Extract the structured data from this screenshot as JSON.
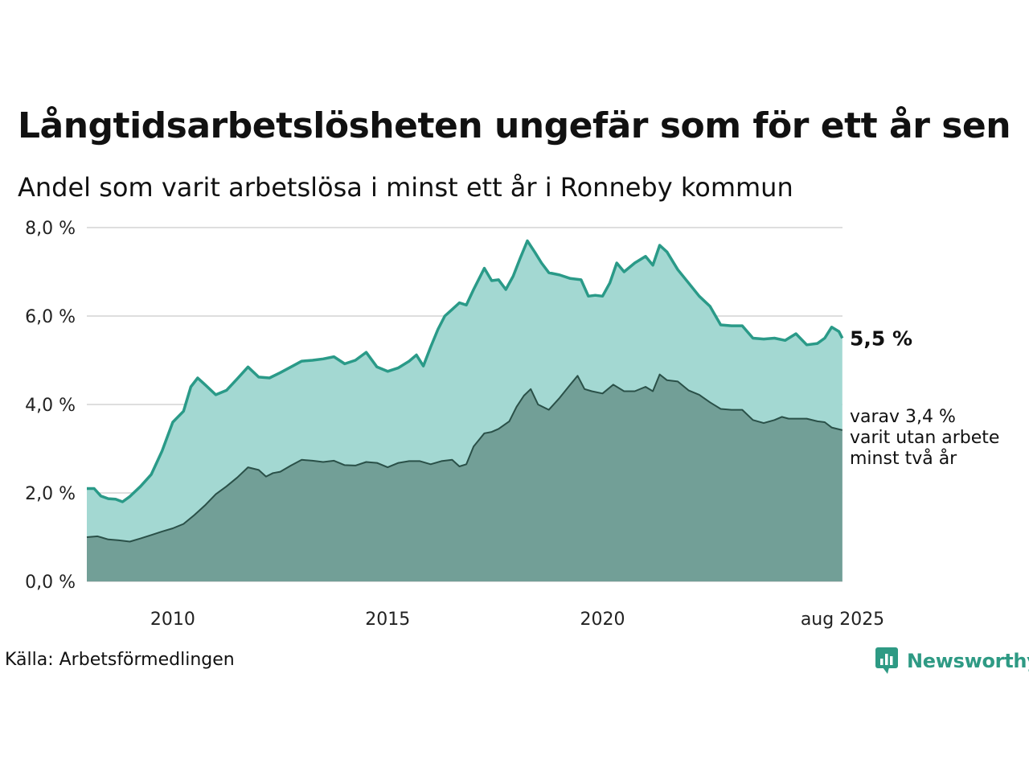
{
  "title": "Långtidsarbetslösheten ungefär som för ett år sen",
  "subtitle": "Andel som varit arbetslösa i minst ett år i Ronneby kommun",
  "source": "Källa: Arbetsförmedlingen",
  "brand": {
    "name": "Newsworthy",
    "color": "#2e9a84",
    "icon": "bar-chart-bubble-icon"
  },
  "chart_data": {
    "type": "area",
    "ylim": [
      0,
      8
    ],
    "y_ticks": [
      0,
      2,
      4,
      6,
      8
    ],
    "y_tick_labels": [
      "0,0 %",
      "2,0 %",
      "4,0 %",
      "6,0 %",
      "8,0 %"
    ],
    "x_range": [
      2008.0,
      2025.583
    ],
    "x_ticks": [
      2010,
      2015,
      2020,
      2025.583
    ],
    "x_tick_labels": [
      "2010",
      "2015",
      "2020",
      "aug 2025"
    ],
    "grid": true,
    "end_labels": {
      "total": "5,5 %",
      "subset": [
        "varav 3,4 %",
        "varit utan arbete",
        "minst två år"
      ]
    },
    "series": [
      {
        "key": "total",
        "color_line": "#2a9a88",
        "color_fill": "#a3d8d2",
        "points": [
          [
            2008.0,
            2.1
          ],
          [
            2008.17,
            2.1
          ],
          [
            2008.33,
            1.93
          ],
          [
            2008.5,
            1.87
          ],
          [
            2008.67,
            1.86
          ],
          [
            2008.83,
            1.8
          ],
          [
            2009.0,
            1.92
          ],
          [
            2009.25,
            2.15
          ],
          [
            2009.5,
            2.42
          ],
          [
            2009.75,
            2.95
          ],
          [
            2010.0,
            3.6
          ],
          [
            2010.25,
            3.85
          ],
          [
            2010.42,
            4.4
          ],
          [
            2010.58,
            4.6
          ],
          [
            2010.75,
            4.45
          ],
          [
            2011.0,
            4.22
          ],
          [
            2011.25,
            4.32
          ],
          [
            2011.5,
            4.58
          ],
          [
            2011.75,
            4.85
          ],
          [
            2012.0,
            4.62
          ],
          [
            2012.25,
            4.6
          ],
          [
            2012.5,
            4.72
          ],
          [
            2012.75,
            4.85
          ],
          [
            2013.0,
            4.98
          ],
          [
            2013.25,
            5.0
          ],
          [
            2013.5,
            5.03
          ],
          [
            2013.75,
            5.08
          ],
          [
            2014.0,
            4.92
          ],
          [
            2014.25,
            5.0
          ],
          [
            2014.5,
            5.18
          ],
          [
            2014.75,
            4.85
          ],
          [
            2015.0,
            4.75
          ],
          [
            2015.25,
            4.83
          ],
          [
            2015.5,
            4.98
          ],
          [
            2015.67,
            5.12
          ],
          [
            2015.83,
            4.87
          ],
          [
            2016.0,
            5.3
          ],
          [
            2016.17,
            5.7
          ],
          [
            2016.33,
            6.0
          ],
          [
            2016.5,
            6.15
          ],
          [
            2016.67,
            6.3
          ],
          [
            2016.83,
            6.25
          ],
          [
            2017.0,
            6.6
          ],
          [
            2017.25,
            7.08
          ],
          [
            2017.42,
            6.8
          ],
          [
            2017.58,
            6.82
          ],
          [
            2017.75,
            6.6
          ],
          [
            2017.92,
            6.9
          ],
          [
            2018.08,
            7.3
          ],
          [
            2018.25,
            7.7
          ],
          [
            2018.42,
            7.45
          ],
          [
            2018.58,
            7.2
          ],
          [
            2018.75,
            6.98
          ],
          [
            2019.0,
            6.93
          ],
          [
            2019.25,
            6.85
          ],
          [
            2019.5,
            6.82
          ],
          [
            2019.67,
            6.45
          ],
          [
            2019.83,
            6.47
          ],
          [
            2020.0,
            6.45
          ],
          [
            2020.17,
            6.75
          ],
          [
            2020.33,
            7.2
          ],
          [
            2020.5,
            7.0
          ],
          [
            2020.75,
            7.2
          ],
          [
            2021.0,
            7.35
          ],
          [
            2021.17,
            7.15
          ],
          [
            2021.33,
            7.6
          ],
          [
            2021.5,
            7.45
          ],
          [
            2021.75,
            7.05
          ],
          [
            2022.0,
            6.75
          ],
          [
            2022.25,
            6.45
          ],
          [
            2022.5,
            6.22
          ],
          [
            2022.75,
            5.8
          ],
          [
            2023.0,
            5.78
          ],
          [
            2023.25,
            5.78
          ],
          [
            2023.5,
            5.5
          ],
          [
            2023.75,
            5.48
          ],
          [
            2024.0,
            5.5
          ],
          [
            2024.25,
            5.45
          ],
          [
            2024.5,
            5.6
          ],
          [
            2024.75,
            5.35
          ],
          [
            2025.0,
            5.38
          ],
          [
            2025.17,
            5.5
          ],
          [
            2025.33,
            5.75
          ],
          [
            2025.5,
            5.65
          ],
          [
            2025.58,
            5.5
          ]
        ]
      },
      {
        "key": "subset",
        "color_line": "#2a5048",
        "color_fill": "#729f97",
        "points": [
          [
            2008.0,
            1.0
          ],
          [
            2008.25,
            1.02
          ],
          [
            2008.5,
            0.95
          ],
          [
            2008.75,
            0.93
          ],
          [
            2009.0,
            0.9
          ],
          [
            2009.25,
            0.97
          ],
          [
            2009.5,
            1.05
          ],
          [
            2009.75,
            1.13
          ],
          [
            2010.0,
            1.2
          ],
          [
            2010.25,
            1.3
          ],
          [
            2010.5,
            1.5
          ],
          [
            2010.75,
            1.72
          ],
          [
            2011.0,
            1.97
          ],
          [
            2011.25,
            2.15
          ],
          [
            2011.5,
            2.35
          ],
          [
            2011.75,
            2.58
          ],
          [
            2012.0,
            2.52
          ],
          [
            2012.17,
            2.37
          ],
          [
            2012.33,
            2.45
          ],
          [
            2012.5,
            2.48
          ],
          [
            2012.75,
            2.62
          ],
          [
            2013.0,
            2.75
          ],
          [
            2013.25,
            2.73
          ],
          [
            2013.5,
            2.7
          ],
          [
            2013.75,
            2.73
          ],
          [
            2014.0,
            2.63
          ],
          [
            2014.25,
            2.62
          ],
          [
            2014.5,
            2.7
          ],
          [
            2014.75,
            2.68
          ],
          [
            2015.0,
            2.58
          ],
          [
            2015.25,
            2.68
          ],
          [
            2015.5,
            2.72
          ],
          [
            2015.75,
            2.72
          ],
          [
            2016.0,
            2.65
          ],
          [
            2016.25,
            2.72
          ],
          [
            2016.5,
            2.75
          ],
          [
            2016.67,
            2.6
          ],
          [
            2016.83,
            2.65
          ],
          [
            2017.0,
            3.05
          ],
          [
            2017.25,
            3.35
          ],
          [
            2017.42,
            3.38
          ],
          [
            2017.58,
            3.45
          ],
          [
            2017.83,
            3.62
          ],
          [
            2018.0,
            3.95
          ],
          [
            2018.17,
            4.2
          ],
          [
            2018.33,
            4.35
          ],
          [
            2018.5,
            4.0
          ],
          [
            2018.75,
            3.88
          ],
          [
            2019.0,
            4.15
          ],
          [
            2019.25,
            4.45
          ],
          [
            2019.42,
            4.65
          ],
          [
            2019.58,
            4.35
          ],
          [
            2019.75,
            4.3
          ],
          [
            2020.0,
            4.25
          ],
          [
            2020.25,
            4.45
          ],
          [
            2020.5,
            4.3
          ],
          [
            2020.75,
            4.3
          ],
          [
            2021.0,
            4.4
          ],
          [
            2021.17,
            4.3
          ],
          [
            2021.33,
            4.68
          ],
          [
            2021.5,
            4.55
          ],
          [
            2021.75,
            4.52
          ],
          [
            2022.0,
            4.32
          ],
          [
            2022.25,
            4.22
          ],
          [
            2022.5,
            4.05
          ],
          [
            2022.75,
            3.9
          ],
          [
            2023.0,
            3.88
          ],
          [
            2023.25,
            3.88
          ],
          [
            2023.5,
            3.65
          ],
          [
            2023.75,
            3.58
          ],
          [
            2024.0,
            3.65
          ],
          [
            2024.17,
            3.72
          ],
          [
            2024.33,
            3.68
          ],
          [
            2024.5,
            3.68
          ],
          [
            2024.75,
            3.68
          ],
          [
            2025.0,
            3.62
          ],
          [
            2025.17,
            3.6
          ],
          [
            2025.33,
            3.48
          ],
          [
            2025.58,
            3.42
          ]
        ]
      }
    ]
  }
}
